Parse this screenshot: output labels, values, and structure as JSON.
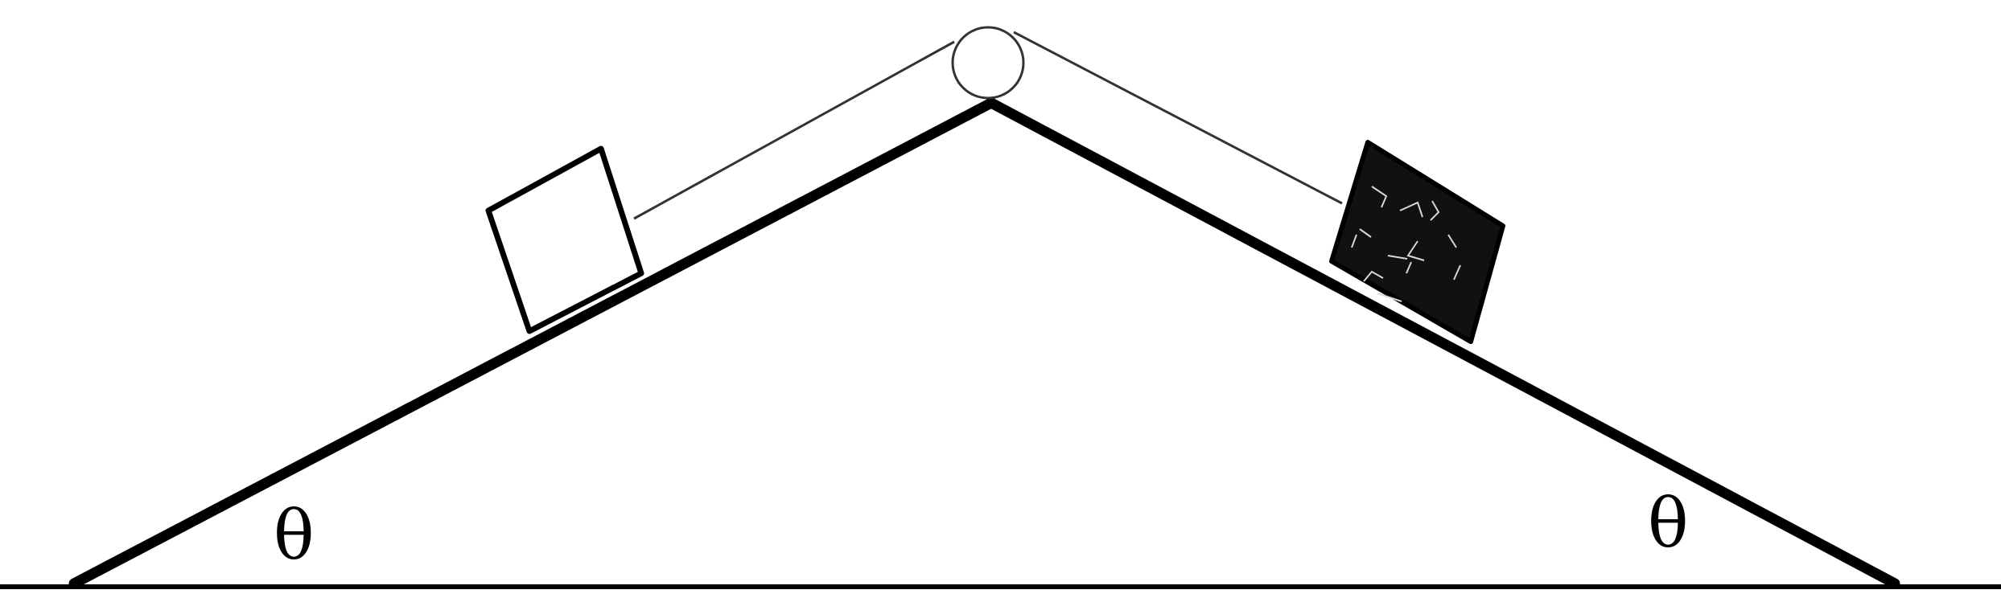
{
  "diagram": {
    "left_angle_label": "θ",
    "right_angle_label": "θ"
  },
  "colors": {
    "stroke": "#000000",
    "background": "#ffffff",
    "dark_block": "#111111"
  }
}
